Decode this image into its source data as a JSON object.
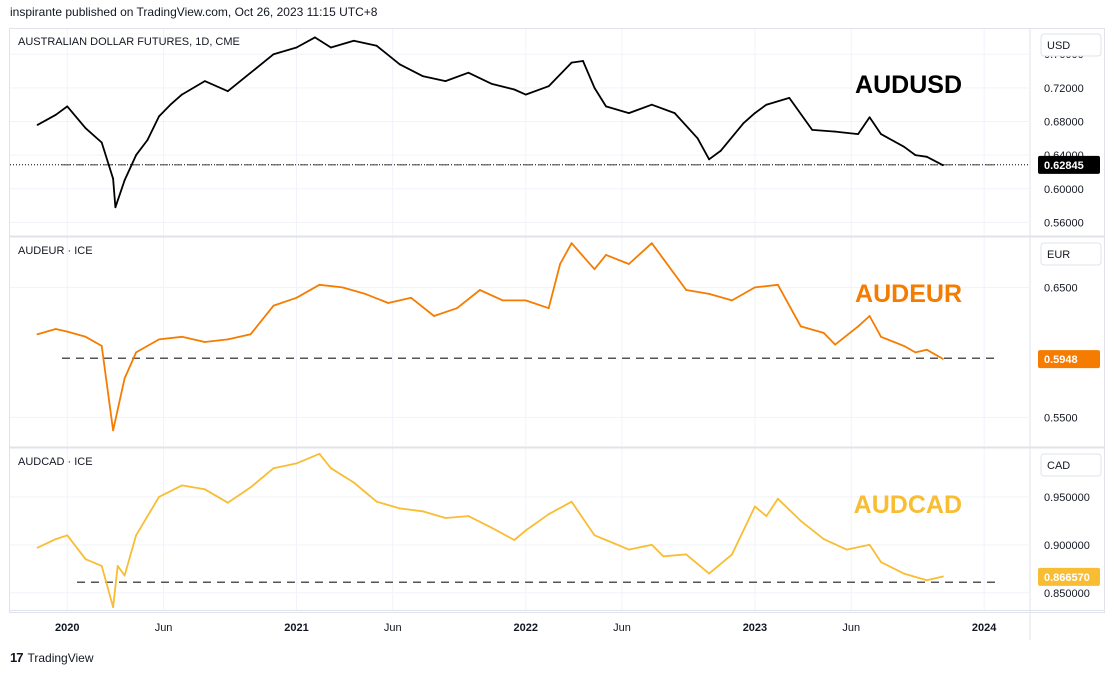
{
  "header": {
    "text": "inspirante published on TradingView.com, Oct 26, 2023 11:15 UTC+8"
  },
  "footer": {
    "logo_text": "17",
    "brand": "TradingView"
  },
  "colors": {
    "audusd": "#000000",
    "audeur": "#f57c00",
    "audcad": "#f9bd33",
    "grid": "#f0f3fa",
    "border": "#e0e3eb"
  },
  "chart_data": [
    {
      "type": "line",
      "title": "AUSTRALIAN DOLLAR FUTURES, 1D, CME",
      "big_label": "AUDUSD",
      "unit": "USD",
      "color": "#000000",
      "last_value": "0.62845",
      "last": 0.62845,
      "ylim": [
        0.545,
        0.79
      ],
      "yticks": [
        "0.76000",
        "0.72000",
        "0.68000",
        "0.64000",
        "0.60000",
        "0.56000"
      ],
      "reference_level": 0.6285,
      "series": [
        {
          "x": [
            2019.87,
            2019.95,
            2020.0,
            2020.08,
            2020.15,
            2020.2,
            2020.21,
            2020.25,
            2020.3,
            2020.35,
            2020.4,
            2020.45,
            2020.5,
            2020.6,
            2020.7,
            2020.8,
            2020.9,
            2021.0,
            2021.08,
            2021.15,
            2021.25,
            2021.35,
            2021.45,
            2021.55,
            2021.65,
            2021.75,
            2021.85,
            2021.95,
            2022.0,
            2022.1,
            2022.2,
            2022.25,
            2022.3,
            2022.35,
            2022.45,
            2022.55,
            2022.65,
            2022.75,
            2022.8,
            2022.85,
            2022.95,
            2023.0,
            2023.05,
            2023.15,
            2023.25,
            2023.35,
            2023.45,
            2023.5,
            2023.55,
            2023.65,
            2023.7,
            2023.75,
            2023.82
          ],
          "values": [
            0.676,
            0.688,
            0.698,
            0.672,
            0.655,
            0.612,
            0.578,
            0.61,
            0.64,
            0.658,
            0.686,
            0.7,
            0.712,
            0.728,
            0.716,
            0.738,
            0.76,
            0.768,
            0.78,
            0.768,
            0.776,
            0.77,
            0.748,
            0.734,
            0.728,
            0.738,
            0.725,
            0.718,
            0.712,
            0.722,
            0.75,
            0.752,
            0.72,
            0.698,
            0.69,
            0.7,
            0.69,
            0.66,
            0.635,
            0.645,
            0.678,
            0.69,
            0.7,
            0.708,
            0.67,
            0.668,
            0.665,
            0.685,
            0.665,
            0.65,
            0.64,
            0.638,
            0.628
          ]
        }
      ]
    },
    {
      "type": "line",
      "title": "AUDEUR · ICE",
      "big_label": "AUDEUR",
      "unit": "EUR",
      "color": "#f57c00",
      "last_value": "0.5948",
      "last": 0.5948,
      "ylim": [
        0.528,
        0.688
      ],
      "yticks": [
        "0.6500",
        "0.5500"
      ],
      "reference_level": 0.5955,
      "series": [
        {
          "x": [
            2019.87,
            2019.95,
            2020.0,
            2020.08,
            2020.15,
            2020.2,
            2020.25,
            2020.3,
            2020.4,
            2020.5,
            2020.6,
            2020.7,
            2020.8,
            2020.9,
            2021.0,
            2021.1,
            2021.2,
            2021.3,
            2021.4,
            2021.5,
            2021.6,
            2021.7,
            2021.8,
            2021.9,
            2022.0,
            2022.1,
            2022.15,
            2022.2,
            2022.3,
            2022.35,
            2022.45,
            2022.55,
            2022.6,
            2022.7,
            2022.8,
            2022.9,
            2023.0,
            2023.1,
            2023.2,
            2023.3,
            2023.35,
            2023.45,
            2023.5,
            2023.55,
            2023.65,
            2023.7,
            2023.75,
            2023.82
          ],
          "values": [
            0.614,
            0.618,
            0.616,
            0.612,
            0.605,
            0.54,
            0.58,
            0.6,
            0.61,
            0.612,
            0.608,
            0.61,
            0.614,
            0.636,
            0.642,
            0.652,
            0.65,
            0.645,
            0.638,
            0.642,
            0.628,
            0.634,
            0.648,
            0.64,
            0.64,
            0.634,
            0.668,
            0.684,
            0.664,
            0.675,
            0.668,
            0.684,
            0.672,
            0.648,
            0.645,
            0.64,
            0.65,
            0.652,
            0.62,
            0.615,
            0.606,
            0.62,
            0.628,
            0.612,
            0.605,
            0.6,
            0.602,
            0.595
          ]
        }
      ]
    },
    {
      "type": "line",
      "title": "AUDCAD · ICE",
      "big_label": "AUDCAD",
      "unit": "CAD",
      "color": "#f9bd33",
      "last_value": "0.866570",
      "last": 0.86657,
      "ylim": [
        0.832,
        1.0
      ],
      "yticks": [
        "0.950000",
        "0.900000",
        "0.850000"
      ],
      "reference_level": 0.861,
      "series": [
        {
          "x": [
            2019.87,
            2019.95,
            2020.0,
            2020.08,
            2020.15,
            2020.2,
            2020.22,
            2020.25,
            2020.3,
            2020.4,
            2020.5,
            2020.6,
            2020.7,
            2020.8,
            2020.9,
            2021.0,
            2021.1,
            2021.15,
            2021.25,
            2021.35,
            2021.45,
            2021.55,
            2021.65,
            2021.75,
            2021.85,
            2021.95,
            2022.0,
            2022.1,
            2022.2,
            2022.3,
            2022.35,
            2022.45,
            2022.55,
            2022.6,
            2022.7,
            2022.8,
            2022.9,
            2023.0,
            2023.05,
            2023.1,
            2023.2,
            2023.3,
            2023.4,
            2023.5,
            2023.55,
            2023.65,
            2023.75,
            2023.82
          ],
          "values": [
            0.897,
            0.906,
            0.91,
            0.885,
            0.878,
            0.835,
            0.878,
            0.868,
            0.91,
            0.95,
            0.962,
            0.958,
            0.944,
            0.96,
            0.98,
            0.985,
            0.995,
            0.98,
            0.965,
            0.945,
            0.938,
            0.935,
            0.928,
            0.93,
            0.918,
            0.905,
            0.915,
            0.932,
            0.945,
            0.91,
            0.905,
            0.895,
            0.9,
            0.888,
            0.89,
            0.87,
            0.89,
            0.94,
            0.93,
            0.948,
            0.925,
            0.906,
            0.895,
            0.9,
            0.882,
            0.87,
            0.863,
            0.867
          ]
        }
      ]
    }
  ],
  "x_axis": {
    "labels": [
      {
        "text": "2020",
        "x": 2020.0,
        "bold": true
      },
      {
        "text": "Jun",
        "x": 2020.42,
        "bold": false
      },
      {
        "text": "2021",
        "x": 2021.0,
        "bold": true
      },
      {
        "text": "Jun",
        "x": 2021.42,
        "bold": false
      },
      {
        "text": "2022",
        "x": 2022.0,
        "bold": true
      },
      {
        "text": "Jun",
        "x": 2022.42,
        "bold": false
      },
      {
        "text": "2023",
        "x": 2023.0,
        "bold": true
      },
      {
        "text": "Jun",
        "x": 2023.42,
        "bold": false
      },
      {
        "text": "2024",
        "x": 2024.0,
        "bold": true
      }
    ],
    "xlim": [
      2019.75,
      2024.2
    ]
  }
}
